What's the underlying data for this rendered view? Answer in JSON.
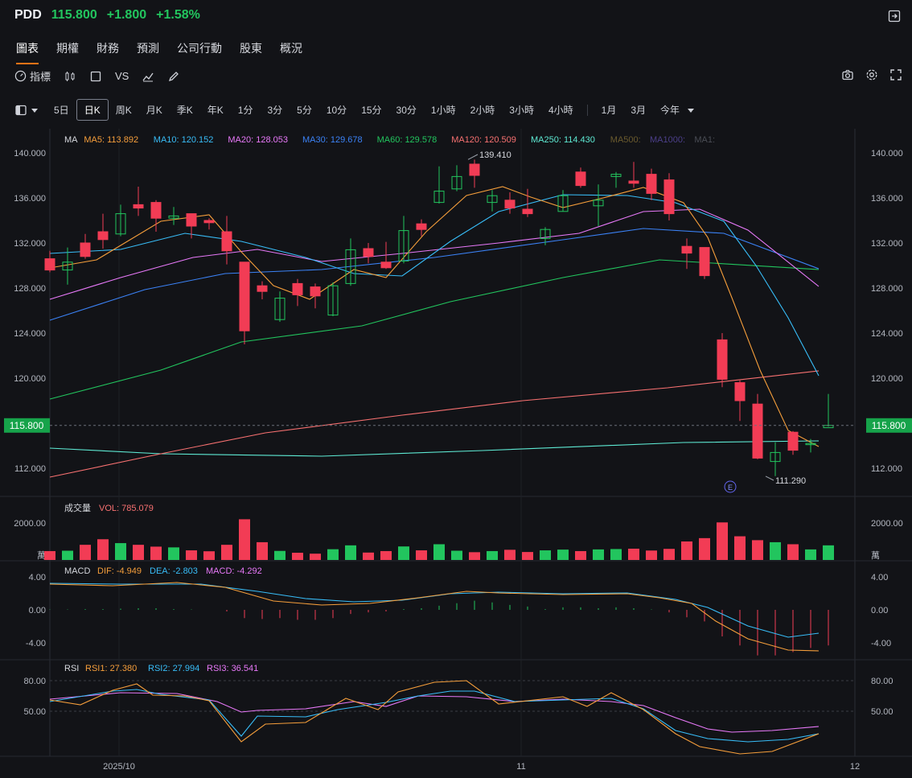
{
  "ticker": {
    "symbol": "PDD",
    "price": "115.800",
    "change": "+1.800",
    "pct": "+1.58%"
  },
  "tabs": [
    "圖表",
    "期權",
    "財務",
    "預測",
    "公司行動",
    "股東",
    "概況"
  ],
  "toolbar": {
    "indicators": "指標",
    "vs": "VS"
  },
  "periods": [
    "5日",
    "日K",
    "周K",
    "月K",
    "季K",
    "年K",
    "1分",
    "3分",
    "5分",
    "10分",
    "15分",
    "30分",
    "1小時",
    "2小時",
    "3小時",
    "4小時",
    "1月",
    "3月",
    "今年"
  ],
  "active_period": "日K",
  "ma_legend": [
    {
      "label": "MA",
      "color": "#d6d8de"
    },
    {
      "label": "MA5: 113.892",
      "color": "#f59e3b"
    },
    {
      "label": "MA10: 120.152",
      "color": "#38bdf8"
    },
    {
      "label": "MA20: 128.053",
      "color": "#e879f9"
    },
    {
      "label": "MA30: 129.678",
      "color": "#3b82f6"
    },
    {
      "label": "MA60: 129.578",
      "color": "#22c55e"
    },
    {
      "label": "MA120: 120.509",
      "color": "#f87171"
    },
    {
      "label": "MA250: 114.430",
      "color": "#5eead4"
    },
    {
      "label": "MA500:",
      "color": "#6b5b2e"
    },
    {
      "label": "MA1000:",
      "color": "#4c3f8a"
    },
    {
      "label": "MA1:",
      "color": "#4a4d55"
    }
  ],
  "price_axis": [
    "140.000",
    "136.000",
    "132.000",
    "128.000",
    "124.000",
    "120.000",
    "112.000"
  ],
  "current_price_tag": "115.800",
  "annotations": {
    "high": "139.410",
    "low": "111.290",
    "event": "E"
  },
  "volume": {
    "title": "成交量",
    "vol": "VOL: 785.079",
    "axis": "2000.00",
    "unit": "萬"
  },
  "macd": {
    "title": "MACD",
    "dif": "DIF: -4.949",
    "dea": "DEA: -2.803",
    "macd": "MACD: -4.292",
    "axis": [
      "4.00",
      "0.00",
      "-4.00"
    ]
  },
  "rsi": {
    "title": "RSI",
    "rsi1": "RSI1: 27.380",
    "rsi2": "RSI2: 27.994",
    "rsi3": "RSI3: 36.541",
    "axis": [
      "80.00",
      "50.00"
    ]
  },
  "x_axis": [
    "2025/10",
    "11",
    "12"
  ],
  "colors": {
    "up": "#22c55e",
    "down": "#f23c55",
    "bg": "#121317"
  },
  "chart_data": {
    "type": "candlestick",
    "ylim": [
      110,
      141
    ],
    "candles": [
      [
        130.6,
        129.6,
        131.3,
        129.4
      ],
      [
        129.6,
        130.3,
        131.6,
        128.3
      ],
      [
        132.0,
        130.8,
        132.8,
        130.6
      ],
      [
        133.0,
        132.3,
        134.6,
        131.5
      ],
      [
        132.8,
        134.6,
        135.4,
        132.6
      ],
      [
        135.4,
        135.1,
        137.0,
        134.4
      ],
      [
        135.6,
        134.2,
        135.8,
        133.0
      ],
      [
        134.2,
        134.4,
        135.2,
        133.6
      ],
      [
        134.6,
        133.5,
        134.6,
        132.4
      ],
      [
        134.0,
        133.8,
        134.2,
        133.2
      ],
      [
        133.0,
        131.3,
        134.4,
        130.1
      ],
      [
        130.3,
        124.2,
        130.3,
        123.0
      ],
      [
        128.2,
        127.7,
        128.6,
        127.0
      ],
      [
        125.2,
        127.1,
        127.7,
        125.0
      ],
      [
        128.4,
        127.4,
        128.8,
        126.4
      ],
      [
        128.1,
        127.3,
        128.4,
        126.2
      ],
      [
        125.6,
        128.2,
        128.5,
        125.5
      ],
      [
        128.4,
        131.4,
        132.4,
        128.2
      ],
      [
        131.5,
        130.8,
        132.0,
        130.2
      ],
      [
        130.3,
        129.8,
        132.1,
        129.7
      ],
      [
        130.4,
        133.1,
        134.4,
        130.2
      ],
      [
        133.7,
        133.2,
        134.1,
        132.6
      ],
      [
        135.6,
        136.6,
        138.8,
        135.5
      ],
      [
        136.8,
        137.9,
        138.9,
        136.6
      ],
      [
        139.0,
        138.0,
        139.4,
        136.9
      ],
      [
        135.6,
        136.2,
        136.7,
        134.8
      ],
      [
        135.8,
        135.1,
        136.5,
        134.6
      ],
      [
        135.0,
        134.6,
        136.8,
        134.3
      ],
      [
        132.4,
        133.2,
        133.4,
        131.8
      ],
      [
        134.8,
        136.2,
        136.7,
        134.8
      ],
      [
        138.3,
        137.1,
        138.7,
        136.9
      ],
      [
        135.3,
        135.8,
        137.2,
        133.5
      ],
      [
        137.9,
        138.1,
        138.3,
        136.9
      ],
      [
        137.5,
        137.3,
        139.2,
        136.9
      ],
      [
        138.1,
        136.4,
        138.6,
        135.8
      ],
      [
        137.6,
        134.6,
        138.2,
        134.0
      ],
      [
        131.7,
        131.1,
        132.4,
        129.7
      ],
      [
        131.6,
        129.1,
        131.6,
        128.8
      ],
      [
        123.4,
        119.9,
        124.0,
        119.2
      ],
      [
        119.6,
        118.0,
        119.8,
        116.2
      ],
      [
        117.7,
        112.9,
        118.6,
        112.8
      ],
      [
        112.6,
        113.4,
        114.3,
        111.3
      ],
      [
        115.2,
        113.6,
        115.3,
        113.2
      ],
      [
        114.2,
        114.2,
        114.6,
        113.4
      ],
      [
        115.6,
        115.8,
        118.6,
        115.7
      ]
    ],
    "volumes": [
      0.48,
      0.5,
      0.82,
      1.12,
      0.91,
      0.82,
      0.72,
      0.68,
      0.52,
      0.47,
      0.82,
      2.2,
      0.96,
      0.49,
      0.39,
      0.34,
      0.58,
      0.79,
      0.4,
      0.48,
      0.73,
      0.52,
      0.85,
      0.5,
      0.42,
      0.48,
      0.55,
      0.43,
      0.52,
      0.56,
      0.48,
      0.57,
      0.59,
      0.61,
      0.51,
      0.6,
      1.0,
      1.18,
      2.03,
      1.28,
      1.07,
      0.96,
      0.85,
      0.57,
      0.79
    ],
    "vol_max": 2000
  }
}
